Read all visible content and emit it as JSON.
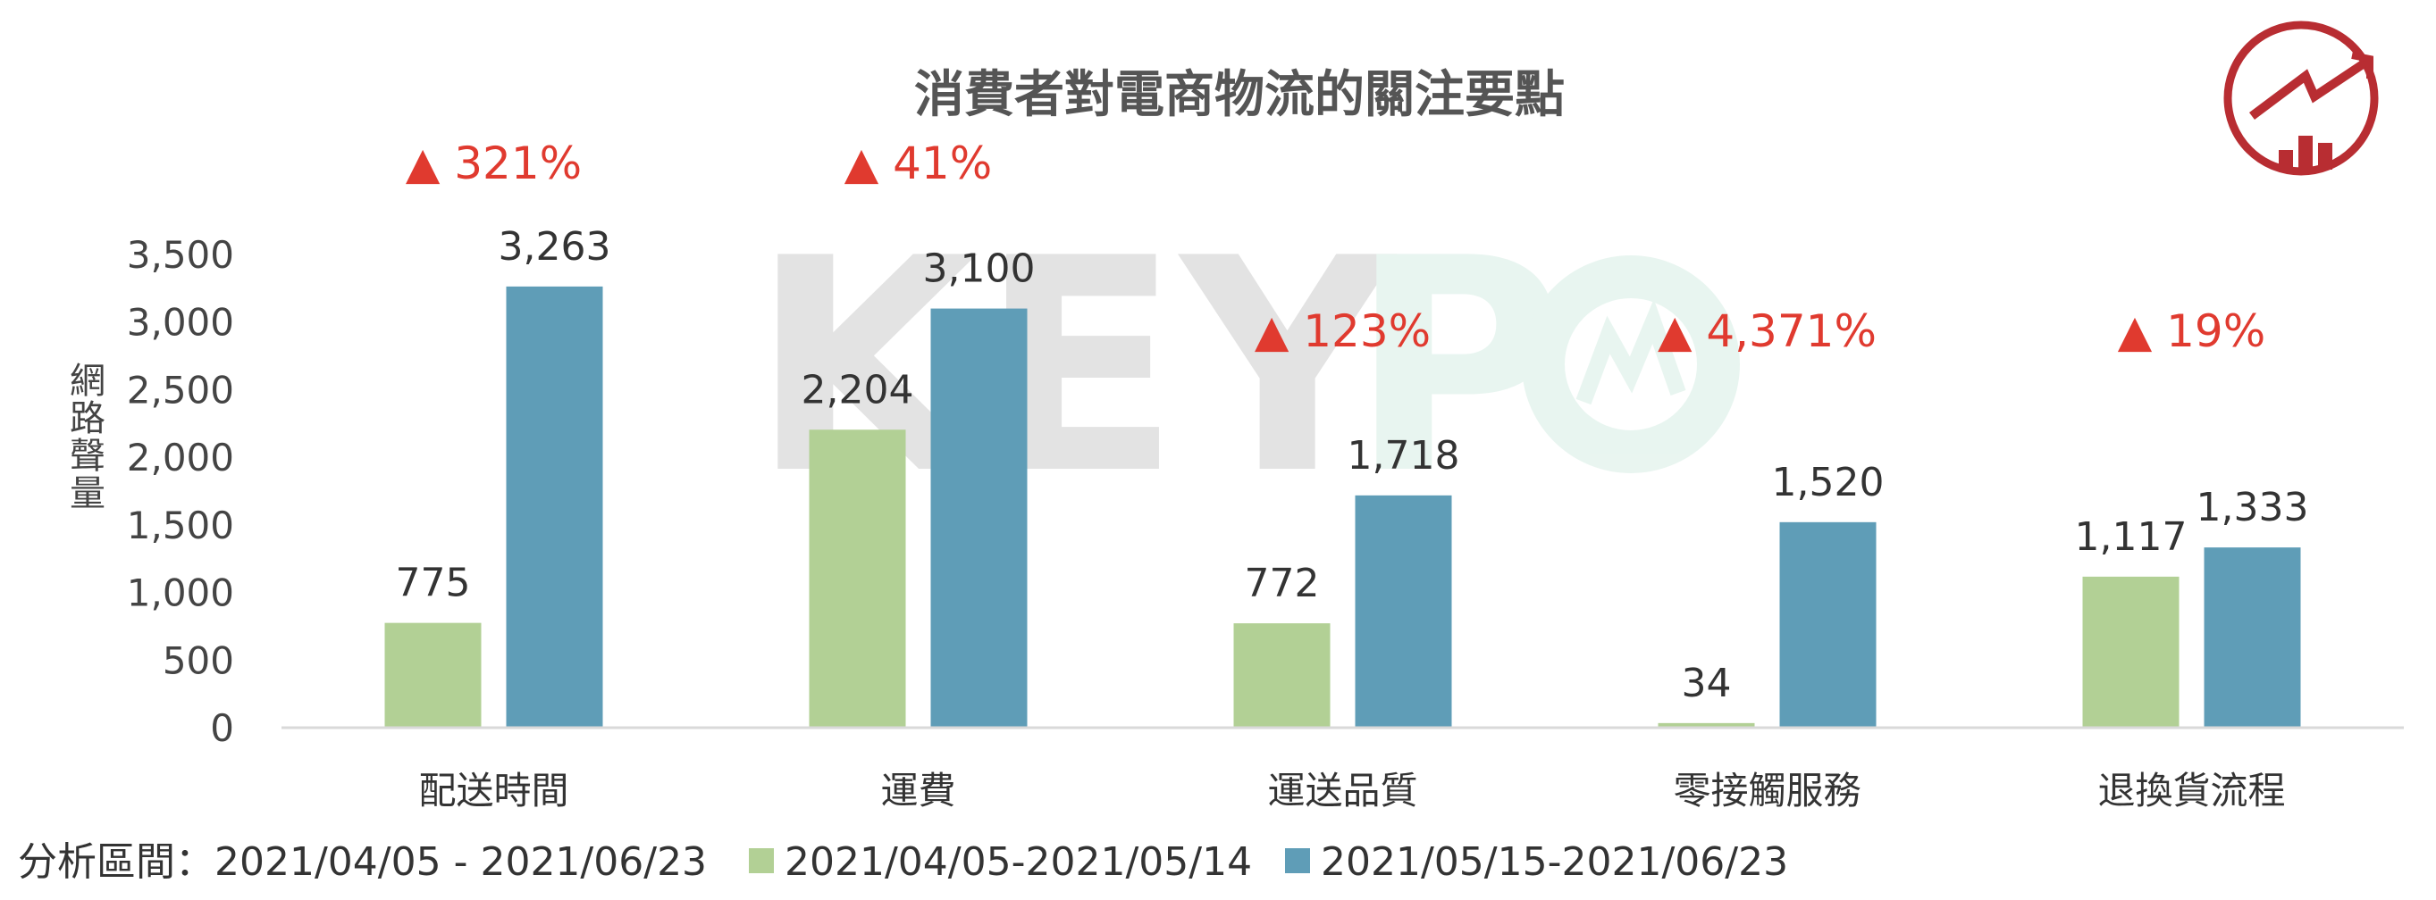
{
  "colors": {
    "series1": "#b2d095",
    "series2": "#5f9db7",
    "growth": "#e03a2f",
    "axis": "#d9d9d9",
    "logo": "#b82d32"
  },
  "watermark": "KEYPO",
  "period": {
    "label": "分析區間：",
    "value": "2021/04/05 - 2021/06/23"
  },
  "chart_data": {
    "type": "bar",
    "title": "消費者對電商物流的關注要點",
    "ylabel": "網路聲量",
    "xlabel": "",
    "ylim": [
      0,
      3500
    ],
    "yticks": [
      "0",
      "500",
      "1,000",
      "1,500",
      "2,000",
      "2,500",
      "3,000",
      "3,500"
    ],
    "grid": false,
    "legend": "bottom",
    "categories": [
      "配送時間",
      "運費",
      "運送品質",
      "零接觸服務",
      "退換貨流程"
    ],
    "series": [
      {
        "name": "2021/04/05-2021/05/14",
        "values": [
          775,
          2204,
          772,
          34,
          1117
        ],
        "labels": [
          "775",
          "2,204",
          "772",
          "34",
          "1,117"
        ]
      },
      {
        "name": "2021/05/15-2021/06/23",
        "values": [
          3263,
          3100,
          1718,
          1520,
          1333
        ],
        "labels": [
          "3,263",
          "3,100",
          "1,718",
          "1,520",
          "1,333"
        ]
      }
    ],
    "growth": [
      "▲ 321%",
      "▲ 41%",
      "▲ 123%",
      "▲ 4,371%",
      "▲ 19%"
    ]
  }
}
